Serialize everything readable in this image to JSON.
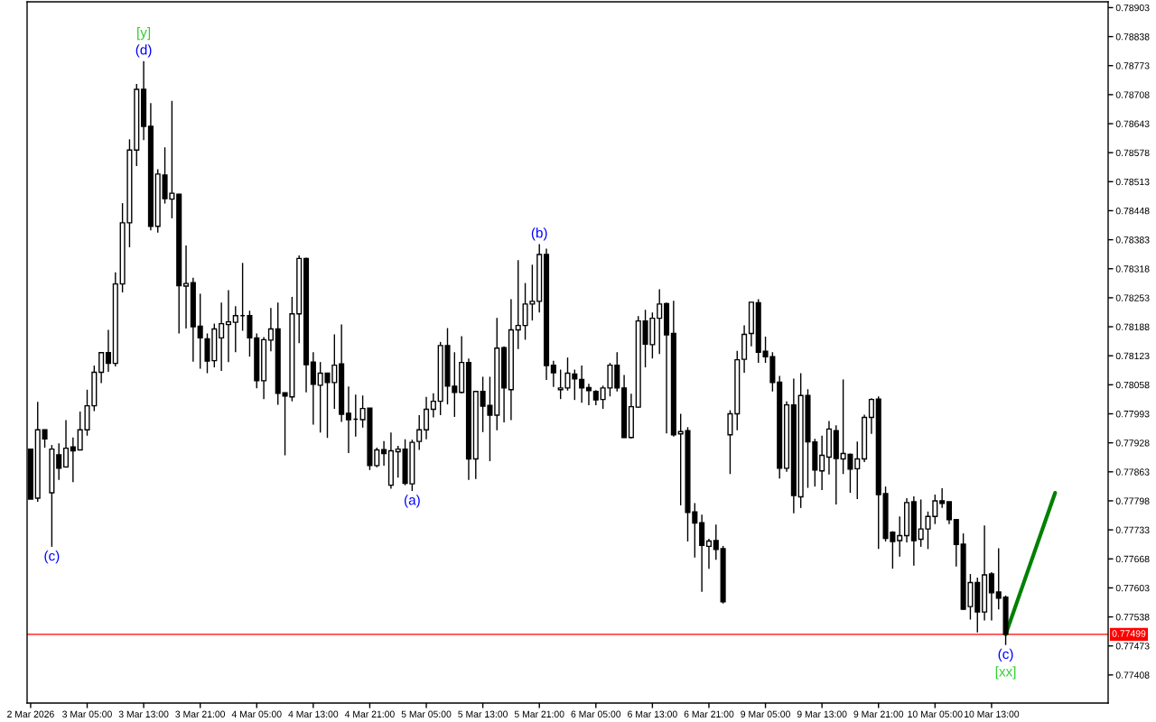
{
  "chart_data": {
    "type": "candlestick",
    "color": "#000000",
    "categories": [
      "2 Mar 2026",
      null,
      null,
      null,
      null,
      null,
      null,
      null,
      "3 Mar 05:00",
      null,
      null,
      null,
      null,
      null,
      null,
      null,
      "3 Mar 13:00",
      null,
      null,
      null,
      null,
      null,
      null,
      null,
      "3 Mar 21:00",
      null,
      null,
      null,
      null,
      null,
      null,
      null,
      "4 Mar 05:00",
      null,
      null,
      null,
      null,
      null,
      null,
      null,
      "4 Mar 13:00",
      null,
      null,
      null,
      null,
      null,
      null,
      null,
      "4 Mar 21:00",
      null,
      null,
      null,
      null,
      null,
      null,
      null,
      "5 Mar 05:00",
      null,
      null,
      null,
      null,
      null,
      null,
      null,
      "5 Mar 13:00",
      null,
      null,
      null,
      null,
      null,
      null,
      null,
      "5 Mar 21:00",
      null,
      null,
      null,
      null,
      null,
      null,
      null,
      "6 Mar 05:00",
      null,
      null,
      null,
      null,
      null,
      null,
      null,
      "6 Mar 13:00",
      null,
      null,
      null,
      null,
      null,
      null,
      null,
      "6 Mar 21:00",
      null,
      null,
      null,
      null,
      null,
      null,
      null,
      "9 Mar 05:00",
      null,
      null,
      null,
      null,
      null,
      null,
      null,
      "9 Mar 13:00",
      null,
      null,
      null,
      null,
      null,
      null,
      null,
      "9 Mar 21:00",
      null,
      null,
      null,
      null,
      null,
      null,
      null,
      "10 Mar 05:00",
      null,
      null,
      null,
      null,
      null,
      null,
      null,
      "10 Mar 13:00",
      null,
      null,
      null,
      null,
      null,
      null,
      null,
      null,
      null,
      null,
      null,
      null,
      null,
      null,
      null,
      null
    ],
    "ohlc": [
      [
        0.77914,
        0.77914,
        0.77802,
        0.77802
      ],
      [
        0.77804,
        0.7802,
        0.77796,
        0.77957
      ],
      [
        0.77957,
        0.77958,
        0.77917,
        0.77937
      ],
      [
        0.77816,
        0.77923,
        0.77695,
        0.77914
      ],
      [
        0.77901,
        0.77927,
        0.77845,
        0.77871
      ],
      [
        0.77874,
        0.77979,
        0.77872,
        0.77916
      ],
      [
        0.77919,
        0.7794,
        0.7784,
        0.7791
      ],
      [
        0.77912,
        0.77998,
        0.77911,
        0.77957
      ],
      [
        0.77957,
        0.78047,
        0.77944,
        0.78011
      ],
      [
        0.78011,
        0.78101,
        0.77999,
        0.78086
      ],
      [
        0.78086,
        0.78131,
        0.78062,
        0.7813
      ],
      [
        0.7813,
        0.78181,
        0.78087,
        0.78106
      ],
      [
        0.78106,
        0.7831,
        0.78099,
        0.78284
      ],
      [
        0.78284,
        0.78465,
        0.78265,
        0.78421
      ],
      [
        0.78421,
        0.78608,
        0.78366,
        0.78584
      ],
      [
        0.78584,
        0.78732,
        0.78548,
        0.7872
      ],
      [
        0.7872,
        0.78783,
        0.78606,
        0.78637
      ],
      [
        0.78637,
        0.78689,
        0.78404,
        0.78413
      ],
      [
        0.78413,
        0.78541,
        0.78399,
        0.7853
      ],
      [
        0.78528,
        0.7859,
        0.78464,
        0.78475
      ],
      [
        0.78474,
        0.78694,
        0.78431,
        0.78487
      ],
      [
        0.78485,
        0.78486,
        0.78173,
        0.7828
      ],
      [
        0.78279,
        0.7837,
        0.78184,
        0.78285
      ],
      [
        0.78287,
        0.78298,
        0.7811,
        0.78188
      ],
      [
        0.78189,
        0.78262,
        0.78094,
        0.78163
      ],
      [
        0.78161,
        0.78173,
        0.78084,
        0.78111
      ],
      [
        0.78112,
        0.78195,
        0.78097,
        0.78183
      ],
      [
        0.78163,
        0.78242,
        0.78089,
        0.78195
      ],
      [
        0.78193,
        0.7827,
        0.78109,
        0.78199
      ],
      [
        0.78198,
        0.78234,
        0.78131,
        0.78213
      ],
      [
        0.78213,
        0.78331,
        0.78179,
        0.78213
      ],
      [
        0.78213,
        0.78224,
        0.78121,
        0.78163
      ],
      [
        0.78163,
        0.78173,
        0.7805,
        0.78067
      ],
      [
        0.78067,
        0.78165,
        0.78026,
        0.78159
      ],
      [
        0.78158,
        0.7823,
        0.78133,
        0.78183
      ],
      [
        0.78183,
        0.78242,
        0.78013,
        0.78039
      ],
      [
        0.7804,
        0.7804,
        0.779,
        0.78033
      ],
      [
        0.78031,
        0.78255,
        0.78021,
        0.78217
      ],
      [
        0.78217,
        0.78348,
        0.78151,
        0.78341
      ],
      [
        0.78341,
        0.78343,
        0.78041,
        0.78103
      ],
      [
        0.78109,
        0.78131,
        0.77969,
        0.78059
      ],
      [
        0.78057,
        0.78109,
        0.77951,
        0.78084
      ],
      [
        0.78084,
        0.78085,
        0.77939,
        0.78063
      ],
      [
        0.78063,
        0.78171,
        0.78004,
        0.78102
      ],
      [
        0.78105,
        0.78193,
        0.77975,
        0.77992
      ],
      [
        0.77994,
        0.78054,
        0.77905,
        0.7798
      ],
      [
        0.77981,
        0.78036,
        0.77942,
        0.77981
      ],
      [
        0.7798,
        0.78034,
        0.77962,
        0.78005
      ],
      [
        0.78006,
        0.78006,
        0.77867,
        0.77877
      ],
      [
        0.77877,
        0.77917,
        0.77873,
        0.77912
      ],
      [
        0.77913,
        0.77932,
        0.77877,
        0.77904
      ],
      [
        0.77833,
        0.77951,
        0.77825,
        0.7791
      ],
      [
        0.77908,
        0.77921,
        0.7785,
        0.77914
      ],
      [
        0.77914,
        0.77936,
        0.77833,
        0.77837
      ],
      [
        0.77836,
        0.77935,
        0.7782,
        0.77929
      ],
      [
        0.77931,
        0.7799,
        0.77912,
        0.77957
      ],
      [
        0.77957,
        0.78031,
        0.77936,
        0.78003
      ],
      [
        0.78003,
        0.78039,
        0.77985,
        0.78021
      ],
      [
        0.78021,
        0.78154,
        0.7799,
        0.78146
      ],
      [
        0.78146,
        0.78185,
        0.78014,
        0.78055
      ],
      [
        0.78055,
        0.78131,
        0.77986,
        0.78041
      ],
      [
        0.78041,
        0.78167,
        0.78039,
        0.78108
      ],
      [
        0.78108,
        0.78117,
        0.77845,
        0.77892
      ],
      [
        0.77892,
        0.78043,
        0.77847,
        0.78043
      ],
      [
        0.78043,
        0.78076,
        0.77952,
        0.7801
      ],
      [
        0.78012,
        0.78076,
        0.77887,
        0.7799
      ],
      [
        0.7799,
        0.78208,
        0.77956,
        0.7814
      ],
      [
        0.78141,
        0.78144,
        0.77974,
        0.78051
      ],
      [
        0.78047,
        0.7825,
        0.77979,
        0.78181
      ],
      [
        0.78181,
        0.78337,
        0.78138,
        0.78191
      ],
      [
        0.78191,
        0.78286,
        0.78159,
        0.78239
      ],
      [
        0.78239,
        0.78327,
        0.78202,
        0.78245
      ],
      [
        0.78245,
        0.78373,
        0.7822,
        0.7835
      ],
      [
        0.7835,
        0.78363,
        0.78069,
        0.78101
      ],
      [
        0.78102,
        0.78112,
        0.78053,
        0.78085
      ],
      [
        0.78047,
        0.78092,
        0.78026,
        0.78051
      ],
      [
        0.78051,
        0.78119,
        0.78045,
        0.78084
      ],
      [
        0.78082,
        0.78092,
        0.78024,
        0.78071
      ],
      [
        0.7807,
        0.78101,
        0.78018,
        0.78051
      ],
      [
        0.78052,
        0.7806,
        0.78012,
        0.78045
      ],
      [
        0.78043,
        0.78046,
        0.78012,
        0.78024
      ],
      [
        0.78025,
        0.78056,
        0.78004,
        0.78051
      ],
      [
        0.78051,
        0.78107,
        0.78032,
        0.78102
      ],
      [
        0.78102,
        0.78131,
        0.78043,
        0.78051
      ],
      [
        0.78051,
        0.7808,
        0.77939,
        0.7794
      ],
      [
        0.7794,
        0.78038,
        0.77938,
        0.78009
      ],
      [
        0.78008,
        0.78212,
        0.78006,
        0.78201
      ],
      [
        0.78201,
        0.78226,
        0.78097,
        0.78149
      ],
      [
        0.78148,
        0.7822,
        0.78117,
        0.78207
      ],
      [
        0.78207,
        0.78272,
        0.78127,
        0.78239
      ],
      [
        0.7824,
        0.78242,
        0.77949,
        0.7817
      ],
      [
        0.78173,
        0.78246,
        0.77942,
        0.77946
      ],
      [
        0.77948,
        0.77993,
        0.77788,
        0.77953
      ],
      [
        0.77955,
        0.77963,
        0.77707,
        0.77772
      ],
      [
        0.77773,
        0.77793,
        0.77671,
        0.77748
      ],
      [
        0.77749,
        0.77767,
        0.77594,
        0.77698
      ],
      [
        0.77696,
        0.77713,
        0.77646,
        0.77708
      ],
      [
        0.77709,
        0.77745,
        0.77666,
        0.77689
      ],
      [
        0.77691,
        0.77697,
        0.77568,
        0.77572
      ],
      [
        0.77946,
        0.78001,
        0.77858,
        0.77993
      ],
      [
        0.77993,
        0.78134,
        0.77956,
        0.78114
      ],
      [
        0.78115,
        0.78191,
        0.78085,
        0.78171
      ],
      [
        0.78173,
        0.78243,
        0.78144,
        0.78243
      ],
      [
        0.78242,
        0.7825,
        0.78107,
        0.78131
      ],
      [
        0.78133,
        0.78166,
        0.78107,
        0.78121
      ],
      [
        0.78121,
        0.78131,
        0.78043,
        0.78063
      ],
      [
        0.78064,
        0.78078,
        0.77848,
        0.77871
      ],
      [
        0.77871,
        0.78021,
        0.77863,
        0.78013
      ],
      [
        0.78013,
        0.78072,
        0.7777,
        0.7781
      ],
      [
        0.77807,
        0.78084,
        0.77782,
        0.78034
      ],
      [
        0.78034,
        0.78048,
        0.77827,
        0.7793
      ],
      [
        0.7793,
        0.77937,
        0.7783,
        0.77867
      ],
      [
        0.77865,
        0.77944,
        0.77822,
        0.779
      ],
      [
        0.77896,
        0.77977,
        0.77857,
        0.77959
      ],
      [
        0.77955,
        0.77967,
        0.7779,
        0.77893
      ],
      [
        0.77892,
        0.7807,
        0.77858,
        0.77904
      ],
      [
        0.77902,
        0.77904,
        0.77816,
        0.77869
      ],
      [
        0.7787,
        0.77931,
        0.77802,
        0.77892
      ],
      [
        0.77892,
        0.77991,
        0.77885,
        0.77985
      ],
      [
        0.77985,
        0.78028,
        0.77948,
        0.78025
      ],
      [
        0.78026,
        0.78032,
        0.7769,
        0.77812
      ],
      [
        0.77814,
        0.7783,
        0.77707,
        0.77714
      ],
      [
        0.77728,
        0.7773,
        0.77646,
        0.77707
      ],
      [
        0.77709,
        0.77763,
        0.77673,
        0.7772
      ],
      [
        0.7772,
        0.77804,
        0.77705,
        0.77794
      ],
      [
        0.77796,
        0.77808,
        0.77653,
        0.77709
      ],
      [
        0.77712,
        0.77801,
        0.77695,
        0.77735
      ],
      [
        0.77735,
        0.77774,
        0.7769,
        0.77763
      ],
      [
        0.77763,
        0.77812,
        0.77746,
        0.77798
      ],
      [
        0.77798,
        0.77826,
        0.77782,
        0.77792
      ],
      [
        0.77796,
        0.77796,
        0.77746,
        0.77756
      ],
      [
        0.77756,
        0.77756,
        0.77651,
        0.777
      ],
      [
        0.77701,
        0.77725,
        0.77554,
        0.77555
      ],
      [
        0.77561,
        0.77634,
        0.77532,
        0.77615
      ],
      [
        0.77615,
        0.77626,
        0.77503,
        0.77549
      ],
      [
        0.77549,
        0.77743,
        0.7753,
        0.77632
      ],
      [
        0.77634,
        0.77638,
        0.7753,
        0.77592
      ],
      [
        0.77594,
        0.77692,
        0.77555,
        0.7758
      ],
      [
        0.77582,
        0.77586,
        0.77475,
        0.77499
      ],
      null,
      null,
      null,
      null,
      null,
      null,
      null,
      null,
      null,
      null,
      null,
      null,
      null,
      null
    ],
    "series": [
      {
        "type": "line",
        "color": "#008000",
        "values": [
          null,
          null,
          null,
          null,
          null,
          null,
          null,
          null,
          null,
          null,
          null,
          null,
          null,
          null,
          null,
          null,
          null,
          null,
          null,
          null,
          null,
          null,
          null,
          null,
          null,
          null,
          null,
          null,
          null,
          null,
          null,
          null,
          null,
          null,
          null,
          null,
          null,
          null,
          null,
          null,
          null,
          null,
          null,
          null,
          null,
          null,
          null,
          null,
          null,
          null,
          null,
          null,
          null,
          null,
          null,
          null,
          null,
          null,
          null,
          null,
          null,
          null,
          null,
          null,
          null,
          null,
          null,
          null,
          null,
          null,
          null,
          null,
          null,
          null,
          null,
          null,
          null,
          null,
          null,
          null,
          null,
          null,
          null,
          null,
          null,
          null,
          null,
          null,
          null,
          null,
          null,
          null,
          null,
          null,
          null,
          null,
          null,
          null,
          null,
          null,
          null,
          null,
          null,
          null,
          null,
          null,
          null,
          null,
          null,
          null,
          null,
          null,
          null,
          null,
          null,
          null,
          null,
          null,
          null,
          null,
          null,
          null,
          null,
          null,
          null,
          null,
          null,
          null,
          null,
          null,
          null,
          null,
          null,
          null,
          null,
          null,
          null,
          null,
          0.77499,
          null,
          null,
          null,
          null,
          null,
          null,
          0.77816,
          null,
          null,
          null,
          null,
          null,
          null,
          null
        ]
      }
    ],
    "ylim": [
      0.77345,
      0.78916
    ],
    "yticks": [
      0.77408,
      0.77473,
      0.77538,
      0.77603,
      0.77668,
      0.77733,
      0.77798,
      0.77863,
      0.77928,
      0.77993,
      0.78058,
      0.78123,
      0.78188,
      0.78253,
      0.78318,
      0.78383,
      0.78448,
      0.78513,
      0.78578,
      0.78643,
      0.78708,
      0.78773,
      0.78838,
      0.78903
    ],
    "ref_lines": [
      {
        "axis": "y",
        "value": 0.77499,
        "label": "0.77499",
        "color": "#ff0000"
      }
    ],
    "annotations": [
      {
        "text": "(c)",
        "y": 0.77695
      },
      {
        "text": "(d)",
        "y": 0.78783
      },
      {
        "text": "[y]",
        "y": 0.78783
      },
      {
        "text": "(a)",
        "y": 0.7782
      },
      {
        "text": "(b)",
        "y": 0.78373
      },
      {
        "text": "(c)",
        "y": 0.77475
      },
      {
        "text": "[xx]",
        "y": 0.77475
      }
    ]
  }
}
